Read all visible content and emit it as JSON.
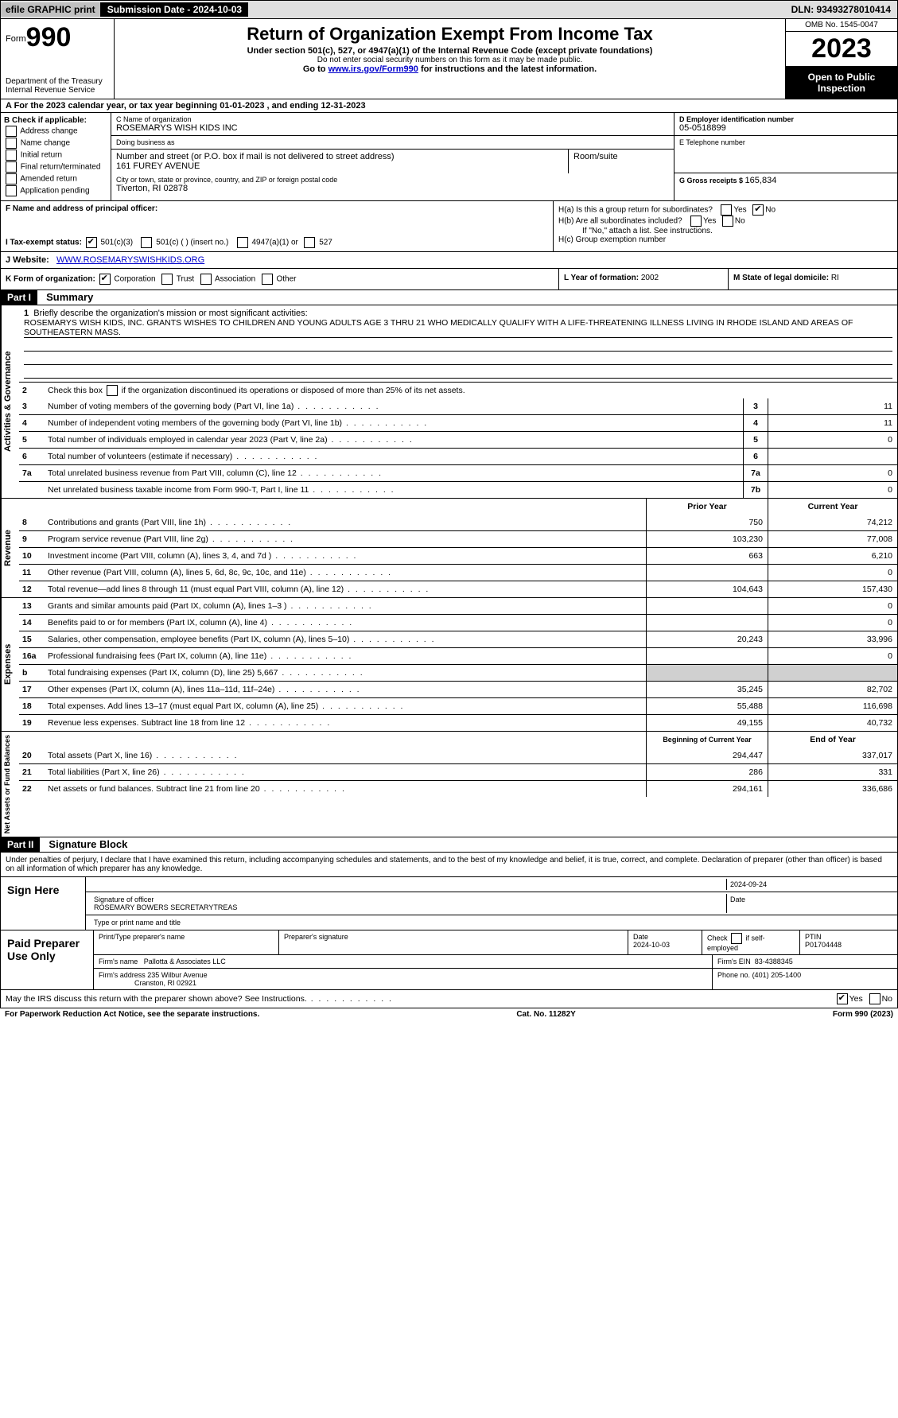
{
  "topbar": {
    "efile": "efile GRAPHIC print",
    "submission": "Submission Date - 2024-10-03",
    "dln": "DLN: 93493278010414"
  },
  "header": {
    "form_prefix": "Form",
    "form_number": "990",
    "dept": "Department of the Treasury",
    "irs": "Internal Revenue Service",
    "title": "Return of Organization Exempt From Income Tax",
    "sub1": "Under section 501(c), 527, or 4947(a)(1) of the Internal Revenue Code (except private foundations)",
    "sub2": "Do not enter social security numbers on this form as it may be made public.",
    "sub3_pre": "Go to ",
    "sub3_link": "www.irs.gov/Form990",
    "sub3_post": " for instructions and the latest information.",
    "omb": "OMB No. 1545-0047",
    "year": "2023",
    "open": "Open to Public Inspection"
  },
  "section_a": "A For the 2023 calendar year, or tax year beginning 01-01-2023   , and ending 12-31-2023",
  "box_b": {
    "label": "B Check if applicable:",
    "items": [
      "Address change",
      "Name change",
      "Initial return",
      "Final return/terminated",
      "Amended return",
      "Application pending"
    ]
  },
  "box_c": {
    "name_lbl": "C Name of organization",
    "name": "ROSEMARYS WISH KIDS INC",
    "dba_lbl": "Doing business as",
    "dba": "",
    "addr_lbl": "Number and street (or P.O. box if mail is not delivered to street address)",
    "addr": "161 FUREY AVENUE",
    "room_lbl": "Room/suite",
    "city_lbl": "City or town, state or province, country, and ZIP or foreign postal code",
    "city": "Tiverton, RI  02878"
  },
  "box_d": {
    "lbl": "D Employer identification number",
    "val": "05-0518899"
  },
  "box_e": {
    "lbl": "E Telephone number",
    "val": ""
  },
  "box_g": {
    "lbl": "G Gross receipts $ ",
    "val": "165,834"
  },
  "box_f": {
    "lbl": "F  Name and address of principal officer:",
    "val": ""
  },
  "box_h": {
    "a": "H(a)  Is this a group return for subordinates?",
    "b": "H(b)  Are all subordinates included?",
    "b_note": "If \"No,\" attach a list. See instructions.",
    "c": "H(c)  Group exemption number"
  },
  "box_i": {
    "lbl": "I   Tax-exempt status:",
    "o1": "501(c)(3)",
    "o2": "501(c) (  ) (insert no.)",
    "o3": "4947(a)(1) or",
    "o4": "527"
  },
  "box_j": {
    "lbl": "J   Website:",
    "val": "WWW.ROSEMARYSWISHKIDS.ORG"
  },
  "box_k": {
    "lbl": "K Form of organization:",
    "o1": "Corporation",
    "o2": "Trust",
    "o3": "Association",
    "o4": "Other"
  },
  "box_l": {
    "lbl": "L Year of formation: ",
    "val": "2002"
  },
  "box_m": {
    "lbl": "M State of legal domicile: ",
    "val": "RI"
  },
  "part1": {
    "hdr": "Part I",
    "title": "Summary"
  },
  "summary": {
    "q1_lbl": "Briefly describe the organization's mission or most significant activities:",
    "q1_val": "ROSEMARYS WISH KIDS, INC. GRANTS WISHES TO CHILDREN AND YOUNG ADULTS AGE 3 THRU 21 WHO MEDICALLY QUALIFY WITH A LIFE-THREATENING ILLNESS LIVING IN RHODE ISLAND AND AREAS OF SOUTHEASTERN MASS.",
    "q2": "Check this box       if the organization discontinued its operations or disposed of more than 25% of its net assets.",
    "lines": [
      {
        "n": "3",
        "d": "Number of voting members of the governing body (Part VI, line 1a)",
        "box": "3",
        "v": "11"
      },
      {
        "n": "4",
        "d": "Number of independent voting members of the governing body (Part VI, line 1b)",
        "box": "4",
        "v": "11"
      },
      {
        "n": "5",
        "d": "Total number of individuals employed in calendar year 2023 (Part V, line 2a)",
        "box": "5",
        "v": "0"
      },
      {
        "n": "6",
        "d": "Total number of volunteers (estimate if necessary)",
        "box": "6",
        "v": ""
      },
      {
        "n": "7a",
        "d": "Total unrelated business revenue from Part VIII, column (C), line 12",
        "box": "7a",
        "v": "0"
      },
      {
        "n": "",
        "d": "Net unrelated business taxable income from Form 990-T, Part I, line 11",
        "box": "7b",
        "v": "0"
      }
    ],
    "col_hdr_prior": "Prior Year",
    "col_hdr_curr": "Current Year",
    "revenue": [
      {
        "n": "8",
        "d": "Contributions and grants (Part VIII, line 1h)",
        "p": "750",
        "c": "74,212"
      },
      {
        "n": "9",
        "d": "Program service revenue (Part VIII, line 2g)",
        "p": "103,230",
        "c": "77,008"
      },
      {
        "n": "10",
        "d": "Investment income (Part VIII, column (A), lines 3, 4, and 7d )",
        "p": "663",
        "c": "6,210"
      },
      {
        "n": "11",
        "d": "Other revenue (Part VIII, column (A), lines 5, 6d, 8c, 9c, 10c, and 11e)",
        "p": "",
        "c": "0"
      },
      {
        "n": "12",
        "d": "Total revenue—add lines 8 through 11 (must equal Part VIII, column (A), line 12)",
        "p": "104,643",
        "c": "157,430"
      }
    ],
    "expenses": [
      {
        "n": "13",
        "d": "Grants and similar amounts paid (Part IX, column (A), lines 1–3 )",
        "p": "",
        "c": "0"
      },
      {
        "n": "14",
        "d": "Benefits paid to or for members (Part IX, column (A), line 4)",
        "p": "",
        "c": "0"
      },
      {
        "n": "15",
        "d": "Salaries, other compensation, employee benefits (Part IX, column (A), lines 5–10)",
        "p": "20,243",
        "c": "33,996"
      },
      {
        "n": "16a",
        "d": "Professional fundraising fees (Part IX, column (A), line 11e)",
        "p": "",
        "c": "0"
      },
      {
        "n": "b",
        "d": "Total fundraising expenses (Part IX, column (D), line 25) 5,667",
        "p": "grey",
        "c": "grey"
      },
      {
        "n": "17",
        "d": "Other expenses (Part IX, column (A), lines 11a–11d, 11f–24e)",
        "p": "35,245",
        "c": "82,702"
      },
      {
        "n": "18",
        "d": "Total expenses. Add lines 13–17 (must equal Part IX, column (A), line 25)",
        "p": "55,488",
        "c": "116,698"
      },
      {
        "n": "19",
        "d": "Revenue less expenses. Subtract line 18 from line 12",
        "p": "49,155",
        "c": "40,732"
      }
    ],
    "col_hdr_begin": "Beginning of Current Year",
    "col_hdr_end": "End of Year",
    "netassets": [
      {
        "n": "20",
        "d": "Total assets (Part X, line 16)",
        "p": "294,447",
        "c": "337,017"
      },
      {
        "n": "21",
        "d": "Total liabilities (Part X, line 26)",
        "p": "286",
        "c": "331"
      },
      {
        "n": "22",
        "d": "Net assets or fund balances. Subtract line 21 from line 20",
        "p": "294,161",
        "c": "336,686"
      }
    ]
  },
  "vlabels": {
    "gov": "Activities & Governance",
    "rev": "Revenue",
    "exp": "Expenses",
    "net": "Net Assets or Fund Balances"
  },
  "part2": {
    "hdr": "Part II",
    "title": "Signature Block"
  },
  "sig": {
    "declare": "Under penalties of perjury, I declare that I have examined this return, including accompanying schedules and statements, and to the best of my knowledge and belief, it is true, correct, and complete. Declaration of preparer (other than officer) is based on all information of which preparer has any knowledge.",
    "sign_here": "Sign Here",
    "sig_officer_lbl": "Signature of officer",
    "officer": "ROSEMARY BOWERS  SECRETARYTREAS",
    "type_lbl": "Type or print name and title",
    "date_lbl": "Date",
    "date": "2024-09-24"
  },
  "prep": {
    "label": "Paid Preparer Use Only",
    "printname_lbl": "Print/Type preparer's name",
    "sig_lbl": "Preparer's signature",
    "date_lbl": "Date",
    "date": "2024-10-03",
    "check_lbl": "Check       if self-employed",
    "ptin_lbl": "PTIN",
    "ptin": "P01704448",
    "firmname_lbl": "Firm's name",
    "firmname": "Pallotta & Associates LLC",
    "firmein_lbl": "Firm's EIN",
    "firmein": "83-4388345",
    "firmaddr_lbl": "Firm's address",
    "firmaddr1": "235 Wilbur Avenue",
    "firmaddr2": "Cranston, RI  02921",
    "phone_lbl": "Phone no.",
    "phone": "(401) 205-1400"
  },
  "irs_discuss": "May the IRS discuss this return with the preparer shown above? See Instructions.",
  "footer": {
    "left": "For Paperwork Reduction Act Notice, see the separate instructions.",
    "mid": "Cat. No. 11282Y",
    "right": "Form 990 (2023)"
  },
  "yesno": {
    "yes": "Yes",
    "no": "No"
  }
}
